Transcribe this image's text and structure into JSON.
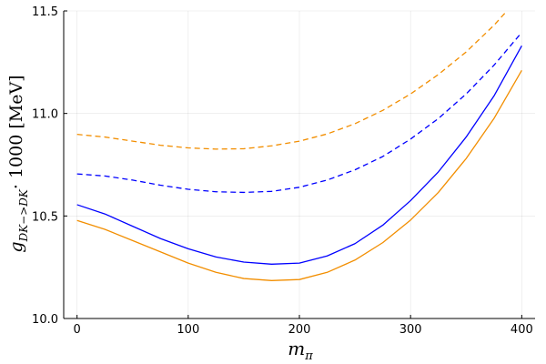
{
  "chart_data": {
    "type": "line",
    "title": "",
    "xlabel": "m",
    "xlabel_sub": "π",
    "ylabel_main": "g",
    "ylabel_sub": "DK−>DK",
    "ylabel_tail": "· 1000 [MeV]",
    "xlim": [
      -12,
      412
    ],
    "ylim": [
      10.0,
      11.5
    ],
    "xticks": [
      0,
      100,
      200,
      300,
      400
    ],
    "xtick_labels": [
      "0",
      "100",
      "200",
      "300",
      "400"
    ],
    "yticks": [
      10.0,
      10.5,
      11.0,
      11.5
    ],
    "ytick_labels": [
      "10.0",
      "10.5",
      "11.0",
      "11.5"
    ],
    "grid": true,
    "series": [
      {
        "color": "#0000ff",
        "dash": "solid",
        "x": [
          0,
          25,
          50,
          75,
          100,
          125,
          150,
          175,
          200,
          225,
          250,
          275,
          300,
          325,
          350,
          375,
          400
        ],
        "y": [
          10.555,
          10.51,
          10.45,
          10.39,
          10.34,
          10.3,
          10.275,
          10.265,
          10.27,
          10.305,
          10.365,
          10.455,
          10.575,
          10.715,
          10.885,
          11.085,
          11.33
        ]
      },
      {
        "color": "#f28e00",
        "dash": "solid",
        "x": [
          0,
          25,
          50,
          75,
          100,
          125,
          150,
          175,
          200,
          225,
          250,
          275,
          300,
          325,
          350,
          375,
          400
        ],
        "y": [
          10.478,
          10.435,
          10.38,
          10.325,
          10.27,
          10.225,
          10.195,
          10.185,
          10.19,
          10.225,
          10.285,
          10.37,
          10.48,
          10.615,
          10.78,
          10.975,
          11.21
        ]
      },
      {
        "color": "#0000ff",
        "dash": "dashed",
        "x": [
          0,
          25,
          50,
          75,
          100,
          125,
          150,
          175,
          200,
          225,
          250,
          275,
          300,
          325,
          350,
          375,
          400
        ],
        "y": [
          10.705,
          10.695,
          10.675,
          10.65,
          10.63,
          10.618,
          10.615,
          10.62,
          10.64,
          10.675,
          10.725,
          10.79,
          10.875,
          10.975,
          11.095,
          11.235,
          11.395
        ]
      },
      {
        "color": "#f28e00",
        "dash": "dashed",
        "x": [
          0,
          25,
          50,
          75,
          100,
          125,
          150,
          175,
          200,
          225,
          250,
          275,
          300,
          325,
          350,
          375,
          390
        ],
        "y": [
          10.898,
          10.885,
          10.865,
          10.845,
          10.832,
          10.826,
          10.828,
          10.842,
          10.865,
          10.9,
          10.95,
          11.015,
          11.095,
          11.19,
          11.3,
          11.43,
          11.52
        ]
      }
    ]
  }
}
